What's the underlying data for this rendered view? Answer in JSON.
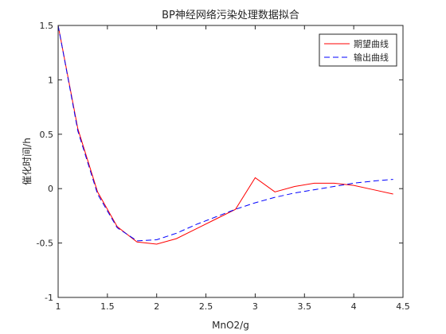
{
  "chart_data": {
    "type": "line",
    "title": "BP神经网络污染处理数据拟合",
    "xlabel": "MnO2/g",
    "ylabel": "催化时间/h",
    "xlim": [
      1,
      4.5
    ],
    "ylim": [
      -1,
      1.5
    ],
    "xticks": [
      1,
      1.5,
      2,
      2.5,
      3,
      3.5,
      4,
      4.5
    ],
    "yticks": [
      -1,
      -0.5,
      0,
      0.5,
      1,
      1.5
    ],
    "xtick_labels": [
      "1",
      "1.5",
      "2",
      "2.5",
      "3",
      "3.5",
      "4",
      "4.5"
    ],
    "ytick_labels": [
      "-1",
      "-0.5",
      "0",
      "0.5",
      "1",
      "1.5"
    ],
    "grid": false,
    "legend_position": "top-right",
    "series": [
      {
        "name": "期望曲线",
        "color": "#ff0000",
        "line_style": "solid",
        "x": [
          1.0,
          1.2,
          1.4,
          1.6,
          1.8,
          2.0,
          2.2,
          2.4,
          2.6,
          2.8,
          3.0,
          3.2,
          3.4,
          3.6,
          3.8,
          4.0,
          4.2,
          4.4
        ],
        "y": [
          1.5,
          0.55,
          -0.03,
          -0.35,
          -0.49,
          -0.51,
          -0.46,
          -0.37,
          -0.28,
          -0.19,
          0.1,
          -0.03,
          0.02,
          0.05,
          0.05,
          0.03,
          -0.01,
          -0.05
        ]
      },
      {
        "name": "输出曲线",
        "color": "#0000ff",
        "line_style": "dashed",
        "x": [
          1.0,
          1.2,
          1.4,
          1.6,
          1.8,
          2.0,
          2.2,
          2.4,
          2.6,
          2.8,
          3.0,
          3.2,
          3.4,
          3.6,
          3.8,
          4.0,
          4.2,
          4.4
        ],
        "y": [
          1.5,
          0.53,
          -0.05,
          -0.36,
          -0.48,
          -0.47,
          -0.41,
          -0.33,
          -0.26,
          -0.19,
          -0.13,
          -0.08,
          -0.04,
          -0.01,
          0.02,
          0.05,
          0.07,
          0.085
        ]
      }
    ]
  }
}
